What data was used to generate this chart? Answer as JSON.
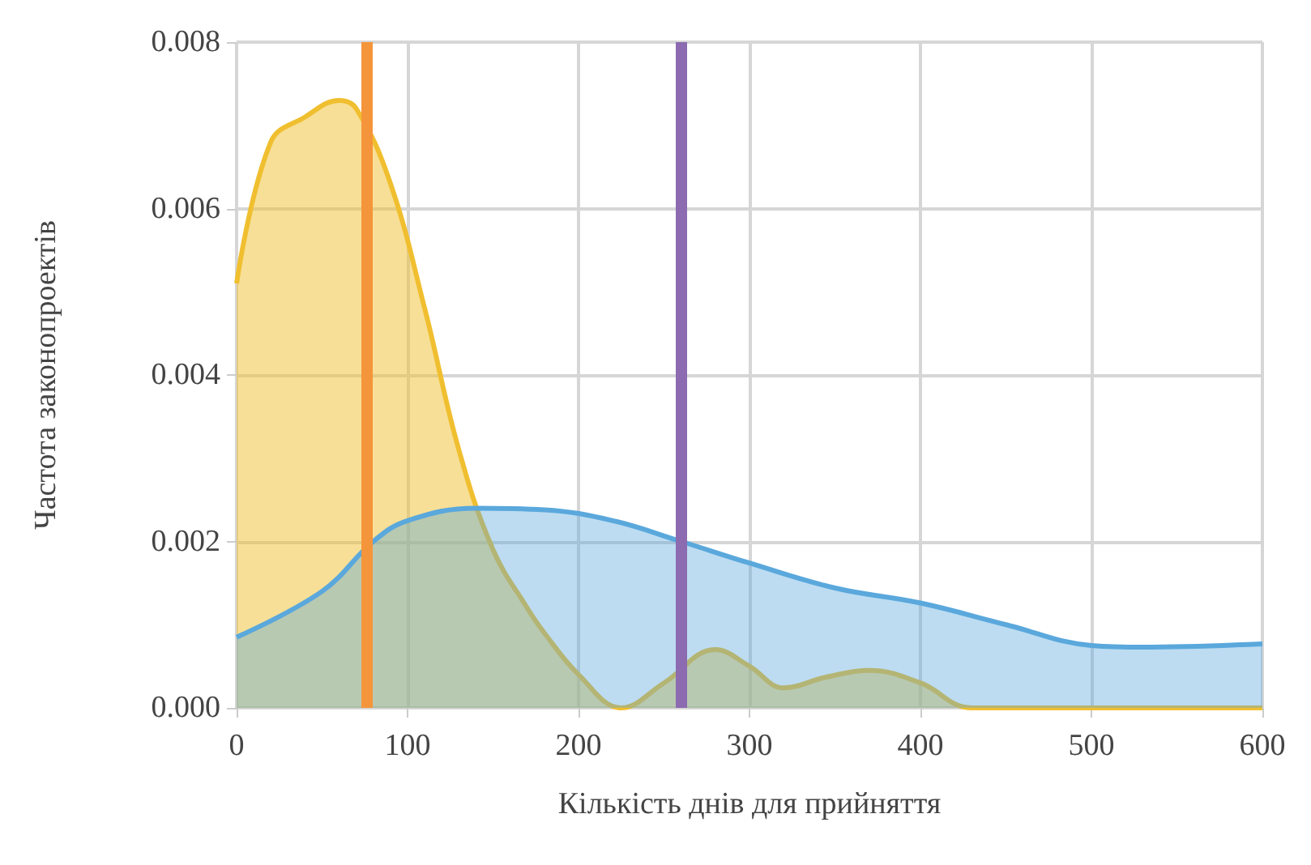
{
  "chart_data": {
    "type": "area",
    "xlabel": "Кількість днів для прийняття",
    "ylabel": "Частота законопроектів",
    "series": [
      {
        "color": "#f0bf30",
        "x": [
          0,
          20,
          40,
          60,
          70,
          90,
          110,
          130,
          150,
          170,
          180,
          200,
          225,
          250,
          280,
          300,
          320,
          345,
          370,
          400,
          430,
          600
        ],
        "values": [
          0.0051,
          0.0068,
          0.0071,
          0.0073,
          0.0072,
          0.0063,
          0.0048,
          0.0031,
          0.0019,
          0.0012,
          0.0009,
          0.0004,
          0.0,
          0.0003,
          0.0007,
          0.0005,
          0.00024,
          0.00037,
          0.00045,
          0.0003,
          0.0,
          0.0
        ]
      },
      {
        "color": "#5aa8dc",
        "x": [
          0,
          50,
          80,
          100,
          140,
          180,
          220,
          260,
          300,
          350,
          400,
          450,
          500,
          530,
          600
        ],
        "values": [
          0.00085,
          0.0014,
          0.002,
          0.00225,
          0.0024,
          0.00238,
          0.00225,
          0.002,
          0.00174,
          0.00144,
          0.00126,
          0.001,
          0.00075,
          0.00073,
          0.00077
        ]
      }
    ],
    "xlim": [
      0,
      600
    ],
    "xticks": [
      0,
      100,
      200,
      300,
      400,
      500,
      600
    ],
    "ylim": [
      0,
      0.008
    ],
    "yticks": [
      {
        "value": 0,
        "label": "0.000"
      },
      {
        "value": 0.002,
        "label": "0.002"
      },
      {
        "value": 0.004,
        "label": "0.004"
      },
      {
        "value": 0.006,
        "label": "0.006"
      },
      {
        "value": 0.008,
        "label": "0.008"
      }
    ],
    "ref_lines": [
      {
        "axis": "x",
        "value": 76,
        "color": "#f5953b"
      },
      {
        "axis": "x",
        "value": 260,
        "color": "#8c6bb1"
      }
    ],
    "grid": true
  }
}
